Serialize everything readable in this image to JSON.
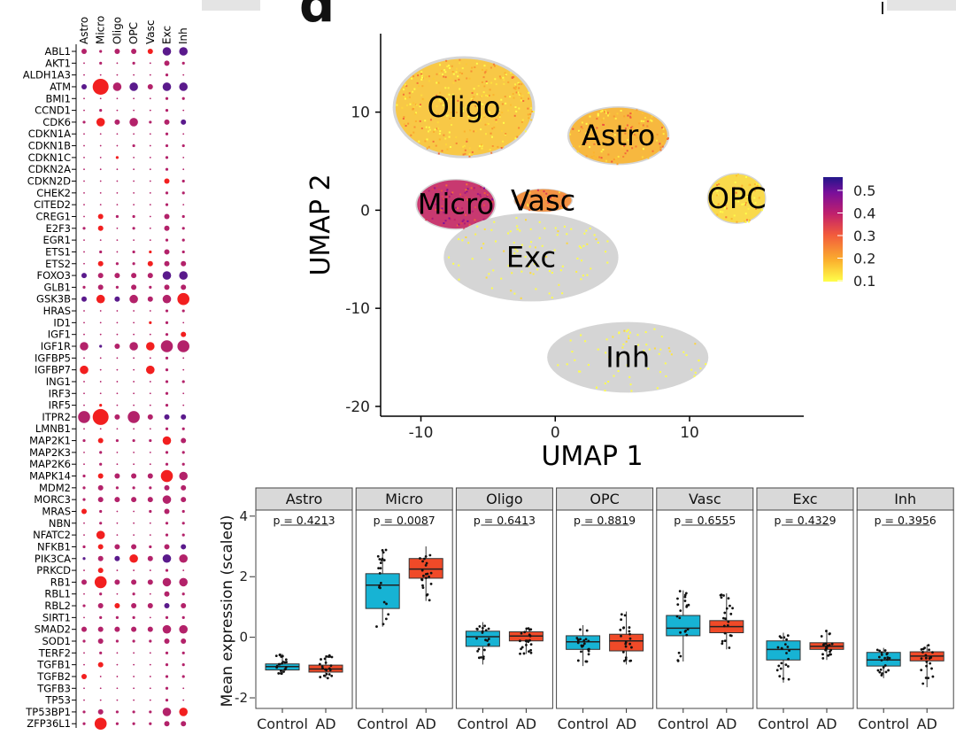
{
  "figure": {
    "panel_letter": "d"
  },
  "chart_data": [
    {
      "type": "scatter",
      "subtype": "dot-plot",
      "columns": [
        "Astro",
        "Micro",
        "Oligo",
        "OPC",
        "Vasc",
        "Exc",
        "Inh"
      ],
      "genes": [
        "ABL1",
        "AKT1",
        "ALDH1A3",
        "ATM",
        "BMI1",
        "CCND1",
        "CDK6",
        "CDKN1A",
        "CDKN1B",
        "CDKN1C",
        "CDKN2A",
        "CDKN2D",
        "CHEK2",
        "CITED2",
        "CREG1",
        "E2F3",
        "EGR1",
        "ETS1",
        "ETS2",
        "FOXO3",
        "GLB1",
        "GSK3B",
        "HRAS",
        "ID1",
        "IGF1",
        "IGF1R",
        "IGFBP5",
        "IGFBP7",
        "ING1",
        "IRF3",
        "IRF5",
        "ITPR2",
        "LMNB1",
        "MAP2K1",
        "MAP2K3",
        "MAP2K6",
        "MAPK14",
        "MDM2",
        "MORC3",
        "MRAS",
        "NBN",
        "NFATC2",
        "NFKB1",
        "PIK3CA",
        "PRKCD",
        "RB1",
        "RBL1",
        "RBL2",
        "SIRT1",
        "SMAD2",
        "SOD1",
        "TERF2",
        "TGFB1",
        "TGFB2",
        "TGFB3",
        "TP53",
        "TP53BP1",
        "ZFP36L1"
      ],
      "sizes": [
        [
          2,
          1,
          2,
          2,
          2,
          3,
          3
        ],
        [
          0,
          1,
          0,
          1,
          0,
          2,
          1
        ],
        [
          0,
          0,
          0,
          0,
          0,
          1,
          0
        ],
        [
          2,
          5,
          3,
          3,
          2,
          3,
          3
        ],
        [
          0,
          0,
          0,
          0,
          0,
          1,
          1
        ],
        [
          0,
          1,
          0,
          0,
          0,
          1,
          0
        ],
        [
          1,
          3,
          2,
          3,
          1,
          2,
          2
        ],
        [
          0,
          0,
          0,
          0,
          0,
          1,
          0
        ],
        [
          0,
          0,
          0,
          1,
          0,
          1,
          1
        ],
        [
          0,
          0,
          1,
          0,
          0,
          1,
          0
        ],
        [
          0,
          0,
          0,
          0,
          0,
          1,
          0
        ],
        [
          0,
          0,
          0,
          0,
          0,
          2,
          1
        ],
        [
          0,
          0,
          0,
          0,
          0,
          1,
          1
        ],
        [
          0,
          0,
          0,
          0,
          0,
          1,
          0
        ],
        [
          0,
          2,
          1,
          1,
          0,
          2,
          1
        ],
        [
          1,
          2,
          0,
          1,
          0,
          2,
          1
        ],
        [
          0,
          0,
          0,
          0,
          0,
          1,
          1
        ],
        [
          0,
          1,
          0,
          1,
          1,
          2,
          1
        ],
        [
          0,
          2,
          1,
          1,
          2,
          2,
          2
        ],
        [
          2,
          2,
          2,
          2,
          2,
          3,
          3
        ],
        [
          1,
          2,
          1,
          2,
          1,
          2,
          2
        ],
        [
          2,
          3,
          2,
          3,
          2,
          3,
          4
        ],
        [
          0,
          0,
          0,
          0,
          0,
          1,
          1
        ],
        [
          0,
          0,
          0,
          0,
          1,
          1,
          0
        ],
        [
          0,
          0,
          0,
          0,
          0,
          1,
          2
        ],
        [
          3,
          1,
          2,
          3,
          3,
          4,
          4
        ],
        [
          0,
          0,
          0,
          0,
          0,
          1,
          0
        ],
        [
          3,
          0,
          0,
          0,
          3,
          1,
          0
        ],
        [
          0,
          0,
          0,
          0,
          0,
          1,
          1
        ],
        [
          0,
          0,
          0,
          0,
          0,
          1,
          0
        ],
        [
          0,
          1,
          0,
          0,
          0,
          1,
          0
        ],
        [
          4,
          5,
          2,
          4,
          2,
          2,
          2
        ],
        [
          0,
          0,
          0,
          0,
          0,
          1,
          1
        ],
        [
          1,
          2,
          1,
          1,
          1,
          3,
          2
        ],
        [
          0,
          1,
          0,
          0,
          0,
          1,
          1
        ],
        [
          0,
          1,
          0,
          0,
          0,
          1,
          1
        ],
        [
          1,
          2,
          2,
          2,
          2,
          4,
          3
        ],
        [
          1,
          2,
          1,
          1,
          1,
          2,
          2
        ],
        [
          1,
          2,
          2,
          2,
          2,
          3,
          2
        ],
        [
          2,
          1,
          0,
          0,
          1,
          2,
          1
        ],
        [
          0,
          1,
          0,
          0,
          0,
          1,
          1
        ],
        [
          0,
          3,
          0,
          0,
          0,
          1,
          1
        ],
        [
          1,
          2,
          2,
          2,
          1,
          2,
          2
        ],
        [
          1,
          2,
          2,
          3,
          2,
          3,
          3
        ],
        [
          0,
          2,
          0,
          0,
          0,
          1,
          0
        ],
        [
          2,
          4,
          2,
          2,
          2,
          3,
          3
        ],
        [
          0,
          1,
          0,
          1,
          0,
          2,
          1
        ],
        [
          1,
          2,
          2,
          2,
          2,
          2,
          2
        ],
        [
          0,
          1,
          1,
          1,
          0,
          1,
          1
        ],
        [
          2,
          2,
          2,
          2,
          2,
          3,
          3
        ],
        [
          1,
          2,
          1,
          1,
          1,
          2,
          2
        ],
        [
          0,
          1,
          0,
          0,
          0,
          1,
          1
        ],
        [
          0,
          2,
          0,
          0,
          0,
          1,
          1
        ],
        [
          2,
          0,
          0,
          0,
          0,
          1,
          1
        ],
        [
          0,
          0,
          0,
          0,
          0,
          1,
          0
        ],
        [
          0,
          0,
          0,
          0,
          0,
          1,
          0
        ],
        [
          1,
          2,
          1,
          1,
          1,
          3,
          3
        ],
        [
          1,
          4,
          1,
          1,
          1,
          2,
          2
        ]
      ],
      "colors": [
        [
          1,
          1,
          1,
          1,
          2,
          0,
          0
        ],
        [
          1,
          1,
          1,
          1,
          1,
          1,
          1
        ],
        [
          1,
          1,
          1,
          1,
          1,
          1,
          1
        ],
        [
          0,
          2,
          1,
          0,
          1,
          0,
          0
        ],
        [
          1,
          1,
          1,
          1,
          1,
          1,
          1
        ],
        [
          1,
          1,
          1,
          1,
          1,
          1,
          1
        ],
        [
          1,
          2,
          1,
          1,
          1,
          1,
          0
        ],
        [
          1,
          1,
          1,
          1,
          1,
          1,
          1
        ],
        [
          1,
          1,
          1,
          1,
          1,
          1,
          1
        ],
        [
          1,
          1,
          2,
          1,
          1,
          1,
          1
        ],
        [
          1,
          1,
          1,
          1,
          1,
          1,
          1
        ],
        [
          1,
          1,
          1,
          1,
          1,
          2,
          1
        ],
        [
          1,
          1,
          1,
          1,
          1,
          1,
          1
        ],
        [
          1,
          1,
          1,
          1,
          1,
          1,
          1
        ],
        [
          1,
          2,
          1,
          1,
          1,
          1,
          1
        ],
        [
          1,
          2,
          1,
          1,
          1,
          1,
          1
        ],
        [
          1,
          1,
          1,
          1,
          1,
          1,
          1
        ],
        [
          1,
          1,
          1,
          1,
          2,
          1,
          1
        ],
        [
          1,
          2,
          1,
          1,
          2,
          1,
          1
        ],
        [
          0,
          1,
          1,
          1,
          1,
          0,
          0
        ],
        [
          1,
          1,
          1,
          1,
          1,
          1,
          1
        ],
        [
          0,
          2,
          0,
          1,
          1,
          1,
          2
        ],
        [
          1,
          1,
          1,
          1,
          1,
          1,
          1
        ],
        [
          1,
          1,
          1,
          1,
          2,
          1,
          1
        ],
        [
          1,
          1,
          1,
          1,
          1,
          1,
          2
        ],
        [
          1,
          0,
          1,
          1,
          2,
          1,
          1
        ],
        [
          1,
          1,
          1,
          1,
          1,
          1,
          1
        ],
        [
          2,
          1,
          1,
          1,
          2,
          1,
          1
        ],
        [
          1,
          1,
          1,
          1,
          1,
          1,
          1
        ],
        [
          1,
          1,
          1,
          1,
          1,
          1,
          1
        ],
        [
          1,
          2,
          1,
          1,
          1,
          1,
          1
        ],
        [
          1,
          2,
          1,
          1,
          1,
          0,
          0
        ],
        [
          1,
          1,
          1,
          1,
          1,
          1,
          1
        ],
        [
          1,
          2,
          1,
          1,
          1,
          2,
          1
        ],
        [
          1,
          1,
          1,
          1,
          1,
          1,
          1
        ],
        [
          1,
          1,
          1,
          1,
          1,
          1,
          1
        ],
        [
          1,
          2,
          1,
          1,
          1,
          2,
          1
        ],
        [
          1,
          1,
          1,
          1,
          1,
          1,
          1
        ],
        [
          1,
          1,
          1,
          1,
          1,
          1,
          1
        ],
        [
          2,
          1,
          1,
          1,
          1,
          1,
          1
        ],
        [
          1,
          1,
          1,
          1,
          1,
          1,
          1
        ],
        [
          1,
          2,
          1,
          1,
          1,
          1,
          1
        ],
        [
          1,
          2,
          1,
          1,
          1,
          1,
          0
        ],
        [
          0,
          1,
          0,
          2,
          1,
          0,
          1
        ],
        [
          1,
          2,
          1,
          1,
          1,
          1,
          1
        ],
        [
          1,
          2,
          1,
          1,
          1,
          1,
          1
        ],
        [
          1,
          1,
          1,
          1,
          1,
          1,
          1
        ],
        [
          1,
          1,
          2,
          1,
          1,
          0,
          1
        ],
        [
          1,
          1,
          1,
          1,
          1,
          1,
          1
        ],
        [
          1,
          1,
          1,
          1,
          1,
          1,
          1
        ],
        [
          1,
          1,
          1,
          1,
          1,
          1,
          1
        ],
        [
          1,
          1,
          1,
          1,
          1,
          1,
          1
        ],
        [
          1,
          2,
          1,
          1,
          1,
          1,
          1
        ],
        [
          2,
          1,
          1,
          1,
          1,
          1,
          1
        ],
        [
          1,
          1,
          1,
          1,
          1,
          1,
          1
        ],
        [
          1,
          1,
          1,
          1,
          1,
          1,
          1
        ],
        [
          1,
          1,
          1,
          1,
          1,
          1,
          2
        ],
        [
          1,
          2,
          1,
          1,
          1,
          1,
          1
        ]
      ],
      "palette": [
        "#5a1a8c",
        "#b3226a",
        "#f21f1f"
      ]
    },
    {
      "type": "scatter",
      "subtype": "umap",
      "xlabel": "UMAP 1",
      "ylabel": "UMAP 2",
      "xlim": [
        -13,
        18.5
      ],
      "ylim": [
        -21,
        18
      ],
      "xticks": [
        -10,
        0,
        10
      ],
      "yticks": [
        10,
        0,
        -10,
        -20
      ],
      "legend": {
        "position": "right",
        "ticks": [
          0.5,
          0.4,
          0.3,
          0.2,
          0.1
        ],
        "colors": [
          "#ffff4a",
          "#fbb12e",
          "#f25a3c",
          "#c0206c",
          "#7a0f9a",
          "#22168a"
        ]
      },
      "clusters": [
        {
          "label": "Oligo",
          "cx": -6.8,
          "cy": 10.5,
          "rx": 5.3,
          "ry": 5.2,
          "score": 0.16
        },
        {
          "label": "Astro",
          "cx": 4.7,
          "cy": 7.6,
          "rx": 3.8,
          "ry": 3.0,
          "score": 0.18
        },
        {
          "label": "Micro",
          "cx": -7.4,
          "cy": 0.6,
          "rx": 3.0,
          "ry": 2.6,
          "score": 0.34
        },
        {
          "label": "Vasc",
          "cx": -0.9,
          "cy": 1.0,
          "rx": 2.2,
          "ry": 1.2,
          "score": 0.22
        },
        {
          "label": "Exc",
          "cx": -1.8,
          "cy": -4.8,
          "rx": 6.5,
          "ry": 4.5,
          "score": 0.05
        },
        {
          "label": "OPC",
          "cx": 13.5,
          "cy": 1.2,
          "rx": 2.2,
          "ry": 2.6,
          "score": 0.14
        },
        {
          "label": "Inh",
          "cx": 5.4,
          "cy": -15.0,
          "rx": 6.0,
          "ry": 3.6,
          "score": 0.05
        }
      ]
    },
    {
      "type": "box",
      "ylabel": "Mean expression (scaled)",
      "ylim": [
        -2.35,
        4.2
      ],
      "yticks": [
        4,
        2,
        0,
        -2
      ],
      "groups": [
        "Control",
        "AD"
      ],
      "group_colors": [
        "#17b3d4",
        "#f04a28"
      ],
      "panels": [
        {
          "label": "Astro",
          "p": "p = 0.4213",
          "control": {
            "q1": -1.08,
            "median": -0.97,
            "q3": -0.88,
            "wlo": -1.2,
            "whi": -0.55
          },
          "ad": {
            "q1": -1.15,
            "median": -1.05,
            "q3": -0.92,
            "wlo": -1.35,
            "whi": -0.6
          }
        },
        {
          "label": "Micro",
          "p": "p = 0.0087",
          "control": {
            "q1": 0.95,
            "median": 1.72,
            "q3": 2.1,
            "wlo": 0.35,
            "whi": 2.9
          },
          "ad": {
            "q1": 1.95,
            "median": 2.25,
            "q3": 2.6,
            "wlo": 1.2,
            "whi": 3.0
          }
        },
        {
          "label": "Oligo",
          "p": "p = 0.6413",
          "control": {
            "q1": -0.3,
            "median": 0.02,
            "q3": 0.2,
            "wlo": -0.9,
            "whi": 0.5
          },
          "ad": {
            "q1": -0.12,
            "median": 0.04,
            "q3": 0.18,
            "wlo": -0.55,
            "whi": 0.3
          }
        },
        {
          "label": "OPC",
          "p": "p = 0.8819",
          "control": {
            "q1": -0.4,
            "median": -0.15,
            "q3": 0.05,
            "wlo": -0.95,
            "whi": 0.4
          },
          "ad": {
            "q1": -0.45,
            "median": -0.12,
            "q3": 0.1,
            "wlo": -0.9,
            "whi": 0.85
          }
        },
        {
          "label": "Vasc",
          "p": "p = 0.6555",
          "control": {
            "q1": 0.05,
            "median": 0.3,
            "q3": 0.72,
            "wlo": -0.8,
            "whi": 1.55
          },
          "ad": {
            "q1": 0.15,
            "median": 0.35,
            "q3": 0.55,
            "wlo": -0.4,
            "whi": 1.45
          }
        },
        {
          "label": "Exc",
          "p": "p = 0.4329",
          "control": {
            "q1": -0.75,
            "median": -0.4,
            "q3": -0.12,
            "wlo": -1.5,
            "whi": 0.15
          },
          "ad": {
            "q1": -0.4,
            "median": -0.3,
            "q3": -0.18,
            "wlo": -0.75,
            "whi": 0.25
          }
        },
        {
          "label": "Inh",
          "p": "p = 0.3956",
          "control": {
            "q1": -0.95,
            "median": -0.75,
            "q3": -0.5,
            "wlo": -1.35,
            "whi": -0.35
          },
          "ad": {
            "q1": -0.78,
            "median": -0.62,
            "q3": -0.48,
            "wlo": -1.65,
            "whi": -0.25
          }
        }
      ]
    }
  ]
}
